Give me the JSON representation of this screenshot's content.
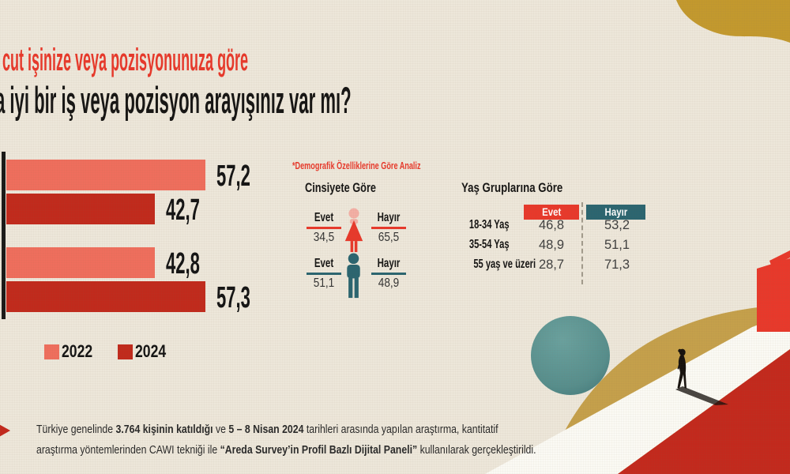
{
  "title": {
    "red_line": "cut işinize veya pozisyonunuza göre",
    "black_line": "a iyi bir iş veya pozisyon arayışınız var mı?"
  },
  "chart_data": {
    "type": "bar",
    "orientation": "horizontal",
    "categories": [
      "",
      ""
    ],
    "series": [
      {
        "name": "2022",
        "color": "#EF6E5D",
        "values": [
          57.2,
          42.8
        ]
      },
      {
        "name": "2024",
        "color": "#C12A1C",
        "values": [
          42.7,
          57.3
        ]
      }
    ],
    "value_labels": [
      "57,2",
      "42,7",
      "42,8",
      "57,3"
    ],
    "value_label_format": "decimal-comma",
    "legend_position": "bottom-left",
    "axis_line": "left-vertical-black"
  },
  "legend": {
    "items": [
      {
        "label": "2022",
        "color": "#EF6E5D"
      },
      {
        "label": "2024",
        "color": "#C12A1C"
      }
    ]
  },
  "demographics": {
    "note": "*Demografik Özelliklerine Göre Analiz",
    "gender": {
      "title": "Cinsiyete Göre",
      "evet_label": "Evet",
      "hayir_label": "Hayır",
      "rows": [
        {
          "icon": "female",
          "evet": "34,5",
          "hayir": "65,5"
        },
        {
          "icon": "male",
          "evet": "51,1",
          "hayir": "48,9"
        }
      ]
    },
    "age": {
      "title": "Yaş Gruplarına Göre",
      "col_evet": "Evet",
      "col_hayir": "Hayır",
      "rows": [
        {
          "label": "18-34 Yaş",
          "evet": "46,8",
          "hayir": "53,2"
        },
        {
          "label": "35-54 Yaş",
          "evet": "48,9",
          "hayir": "51,1"
        },
        {
          "label": "55 yaş ve üzeri",
          "evet": "28,7",
          "hayir": "71,3"
        }
      ]
    }
  },
  "footer": {
    "lines": [
      [
        {
          "text": "Türkiye genelinde ",
          "bold": false
        },
        {
          "text": "3.764 kişinin katıldığı",
          "bold": true
        },
        {
          "text": " ve ",
          "bold": false
        },
        {
          "text": "5 – 8 Nisan 2024",
          "bold": true
        },
        {
          "text": " tarihleri arasında yapılan araştırma, kantitatif",
          "bold": false
        }
      ],
      [
        {
          "text": "araştırma yöntemlerinden CAWI tekniği ile ",
          "bold": false
        },
        {
          "text": "“Areda Survey’in Profil Bazlı Dijital Paneli”",
          "bold": true
        },
        {
          "text": " kullanılarak gerçekleştirildi.",
          "bold": false
        }
      ]
    ]
  },
  "decor_shapes": [
    "gold-wave-top-right",
    "gold-hill",
    "teal-circle",
    "white-path",
    "red-slope",
    "red-box",
    "walking-person-silhouette"
  ],
  "colors": {
    "background": "#EDE7DA",
    "accent_red": "#E8392B",
    "salmon_2022": "#EF6E5D",
    "dark_red_2024": "#C12A1C",
    "teal": "#2B6570",
    "teal_circle": "#5E9492",
    "gold_top": "#C3992E",
    "gold_hill": "#C5A04B",
    "path_white": "#FBFAF4",
    "slope_red": "#C3291D",
    "female_head_pink": "#F3AFA5"
  }
}
